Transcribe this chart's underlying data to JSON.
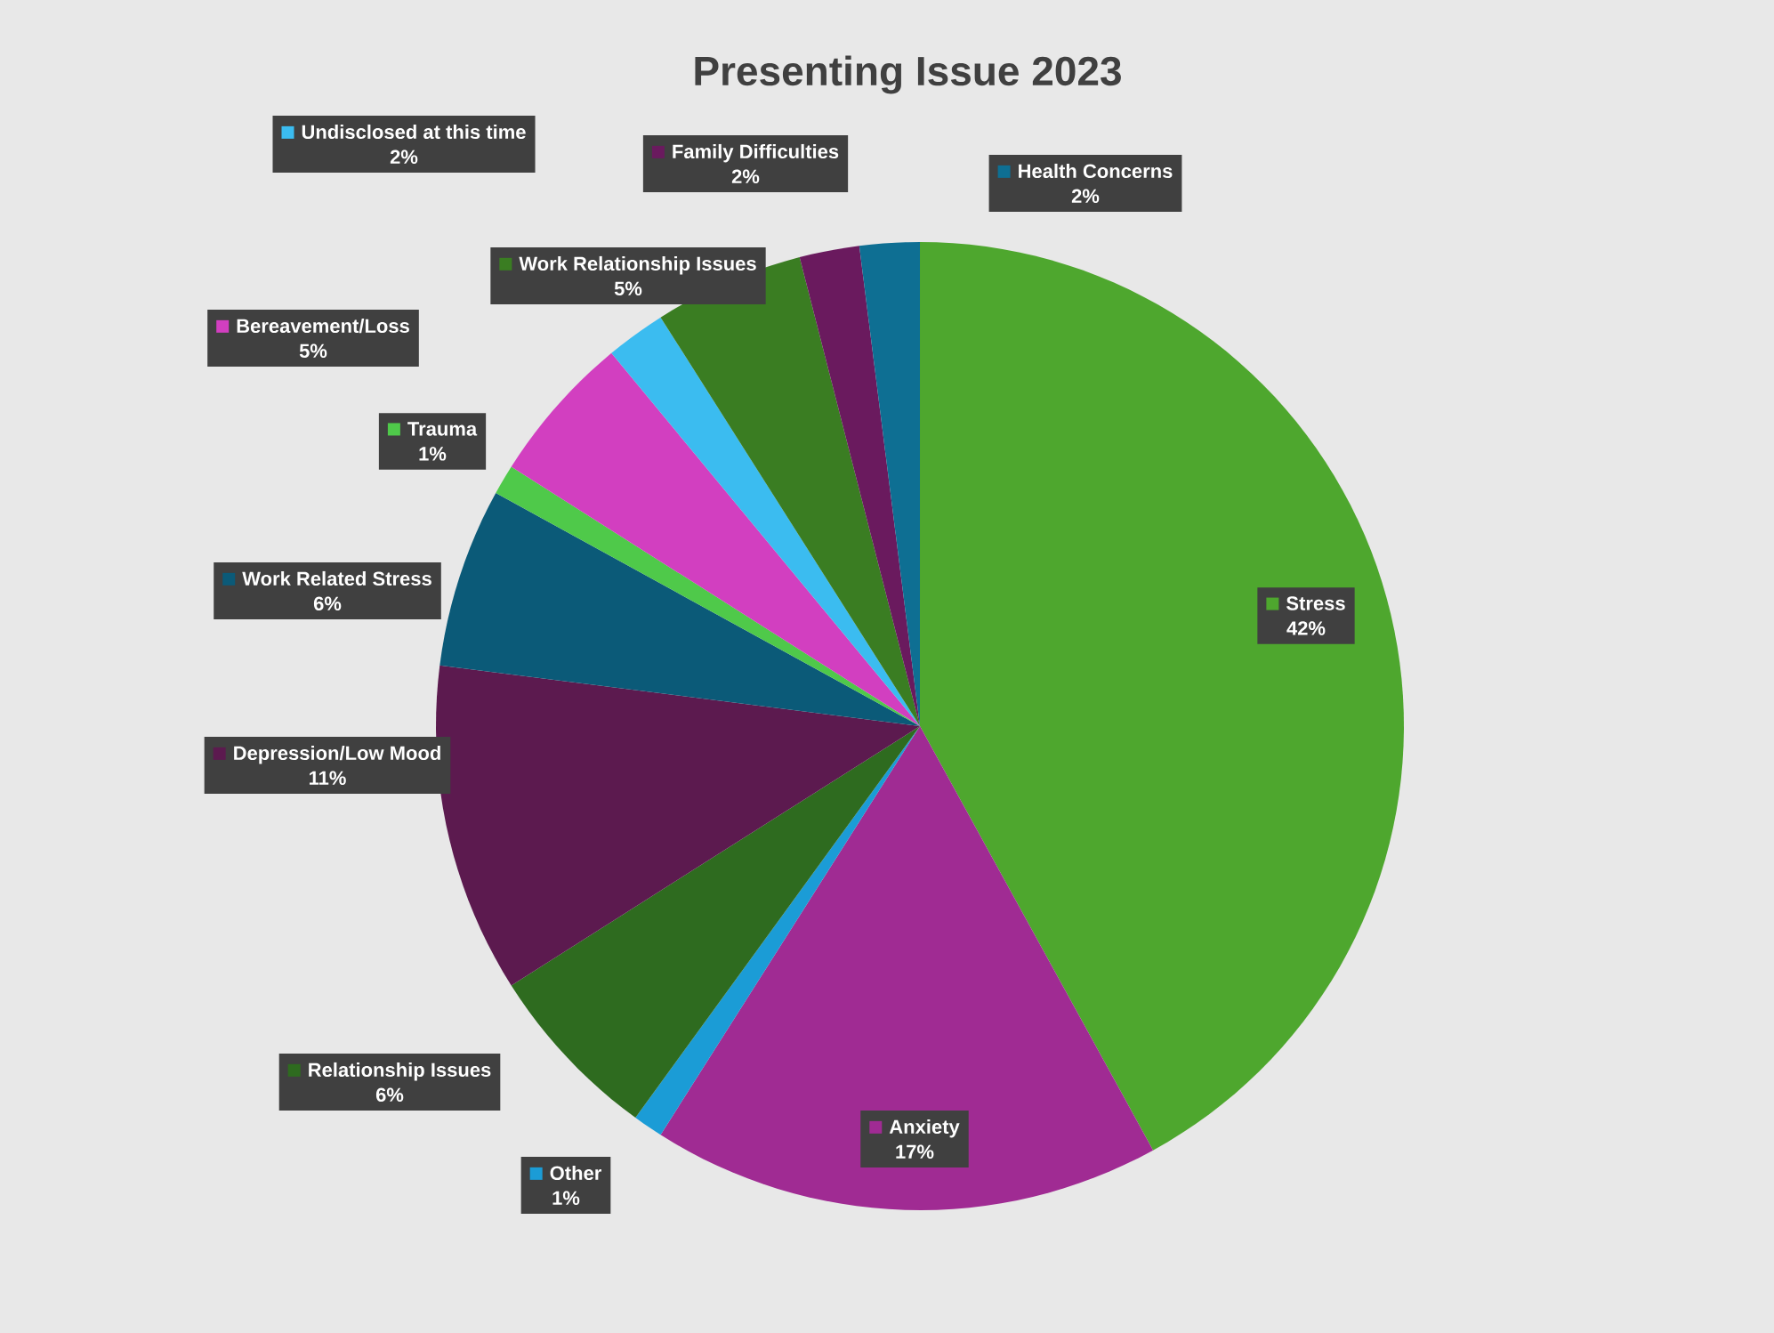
{
  "chart_data": {
    "type": "pie",
    "legend": "left",
    "title": "Presenting Issue 2023",
    "categories": [
      "Stress",
      "Anxiety",
      "Other",
      "Relationship Issues",
      "Depression/Low Mood",
      "Work Related Stress",
      "Trauma",
      "Bereavement/Loss",
      "Undisclosed at this time",
      "Work Relationship Issues",
      "Family Difficulties",
      "Health Concerns"
    ],
    "values": [
      42,
      17,
      1,
      6,
      11,
      6,
      1,
      5,
      2,
      5,
      2,
      2
    ],
    "value_labels": [
      "42%",
      "17%",
      "1%",
      "6%",
      "11%",
      "6%",
      "1%",
      "5%",
      "2%",
      "5%",
      "2%",
      "2%"
    ],
    "colors": [
      "#4ea72e",
      "#a02b93",
      "#1b9cd6",
      "#2e6b1f",
      "#5c1a4f",
      "#0b5a78",
      "#4fc94a",
      "#d23fc0",
      "#3bbcf0",
      "#3a7d22",
      "#6a1a5e",
      "#0e6f93"
    ]
  }
}
